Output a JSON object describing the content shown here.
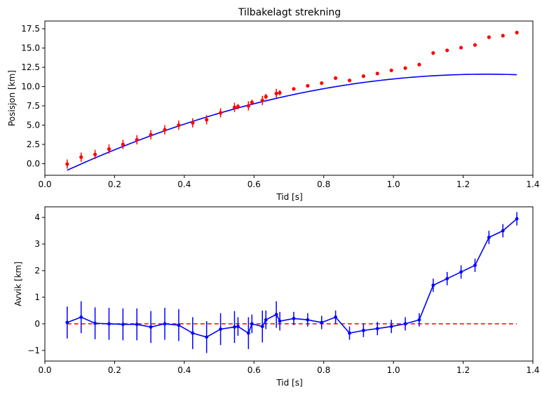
{
  "chart_data": [
    {
      "type": "scatter",
      "title": "Tilbakelagt strekning",
      "xlabel": "Tid [s]",
      "ylabel": "Posisjon [km]",
      "xlim": [
        0.0,
        1.4
      ],
      "ylim": [
        -1.5,
        18.5
      ],
      "xticks": [
        "0.0",
        "0.2",
        "0.4",
        "0.6",
        "0.8",
        "1.0",
        "1.2",
        "1.4"
      ],
      "yticks": [
        "0.0",
        "2.5",
        "5.0",
        "7.5",
        "10.0",
        "12.5",
        "15.0",
        "17.5"
      ],
      "grid": false,
      "colors": {
        "points": "#ff0000",
        "fit": "#0000ff"
      },
      "series": [
        {
          "kind": "errorbar-points",
          "x": [
            0.064,
            0.104,
            0.144,
            0.184,
            0.224,
            0.264,
            0.304,
            0.344,
            0.384,
            0.424,
            0.464,
            0.504,
            0.544,
            0.554,
            0.584,
            0.594,
            0.624,
            0.634,
            0.664,
            0.674,
            0.714,
            0.754,
            0.794,
            0.834,
            0.874,
            0.914,
            0.954,
            0.994,
            1.034,
            1.074,
            1.114,
            1.154,
            1.194,
            1.234,
            1.274,
            1.314,
            1.354
          ],
          "y": [
            -0.05,
            0.85,
            1.2,
            1.9,
            2.5,
            3.1,
            3.75,
            4.4,
            5.0,
            5.3,
            5.7,
            6.6,
            7.3,
            7.4,
            7.5,
            7.95,
            8.2,
            8.7,
            9.1,
            9.2,
            9.7,
            10.1,
            10.45,
            11.1,
            10.8,
            11.35,
            11.7,
            12.1,
            12.4,
            12.85,
            14.35,
            14.7,
            15.05,
            15.4,
            16.4,
            16.6,
            17.0
          ],
          "yerr": [
            0.6,
            0.6,
            0.6,
            0.6,
            0.6,
            0.6,
            0.6,
            0.6,
            0.6,
            0.6,
            0.6,
            0.6,
            0.6,
            0.35,
            0.6,
            0.35,
            0.6,
            0.35,
            0.6,
            0.35,
            0.2,
            0.2,
            0.2,
            0.2,
            0.2,
            0.2,
            0.2,
            0.2,
            0.2,
            0.2,
            0.2,
            0.2,
            0.2,
            0.2,
            0.2,
            0.2,
            0.2
          ]
        },
        {
          "kind": "fit-line",
          "coef": [
            -8.6,
            21.8,
            -2.21
          ]
        }
      ]
    },
    {
      "type": "line",
      "xlabel": "Tid [s]",
      "ylabel": "Avvik [km]",
      "xlim": [
        0.0,
        1.4
      ],
      "ylim": [
        -1.4,
        4.4
      ],
      "xticks": [
        "0.0",
        "0.2",
        "0.4",
        "0.6",
        "0.8",
        "1.0",
        "1.2",
        "1.4"
      ],
      "yticks": [
        "−1",
        "0",
        "1",
        "2",
        "3",
        "4"
      ],
      "grid": false,
      "colors": {
        "series": "#0000ff",
        "reference": "#ff0000"
      },
      "series": [
        {
          "kind": "errorbar-line",
          "x": [
            0.064,
            0.104,
            0.144,
            0.184,
            0.224,
            0.264,
            0.304,
            0.344,
            0.384,
            0.424,
            0.464,
            0.504,
            0.544,
            0.554,
            0.584,
            0.594,
            0.624,
            0.634,
            0.664,
            0.674,
            0.714,
            0.754,
            0.794,
            0.834,
            0.874,
            0.914,
            0.954,
            0.994,
            1.034,
            1.074,
            1.114,
            1.154,
            1.194,
            1.234,
            1.274,
            1.314,
            1.354
          ],
          "y": [
            0.05,
            0.25,
            0.02,
            0.0,
            -0.02,
            -0.02,
            -0.12,
            0.0,
            -0.05,
            -0.35,
            -0.5,
            -0.2,
            -0.12,
            -0.1,
            -0.35,
            0.0,
            -0.1,
            0.15,
            0.35,
            0.1,
            0.2,
            0.15,
            0.05,
            0.25,
            -0.35,
            -0.25,
            -0.18,
            -0.1,
            0.0,
            0.15,
            1.45,
            1.7,
            1.95,
            2.2,
            3.25,
            3.5,
            3.95
          ],
          "yerr": [
            0.6,
            0.6,
            0.6,
            0.6,
            0.6,
            0.6,
            0.6,
            0.6,
            0.6,
            0.6,
            0.6,
            0.6,
            0.6,
            0.35,
            0.6,
            0.35,
            0.6,
            0.35,
            0.5,
            0.35,
            0.25,
            0.25,
            0.25,
            0.25,
            0.25,
            0.25,
            0.25,
            0.25,
            0.25,
            0.25,
            0.25,
            0.25,
            0.25,
            0.25,
            0.25,
            0.25,
            0.25
          ]
        },
        {
          "kind": "reference-line",
          "y": 0,
          "x": [
            0.064,
            1.354
          ],
          "style": "dashed"
        }
      ]
    }
  ]
}
